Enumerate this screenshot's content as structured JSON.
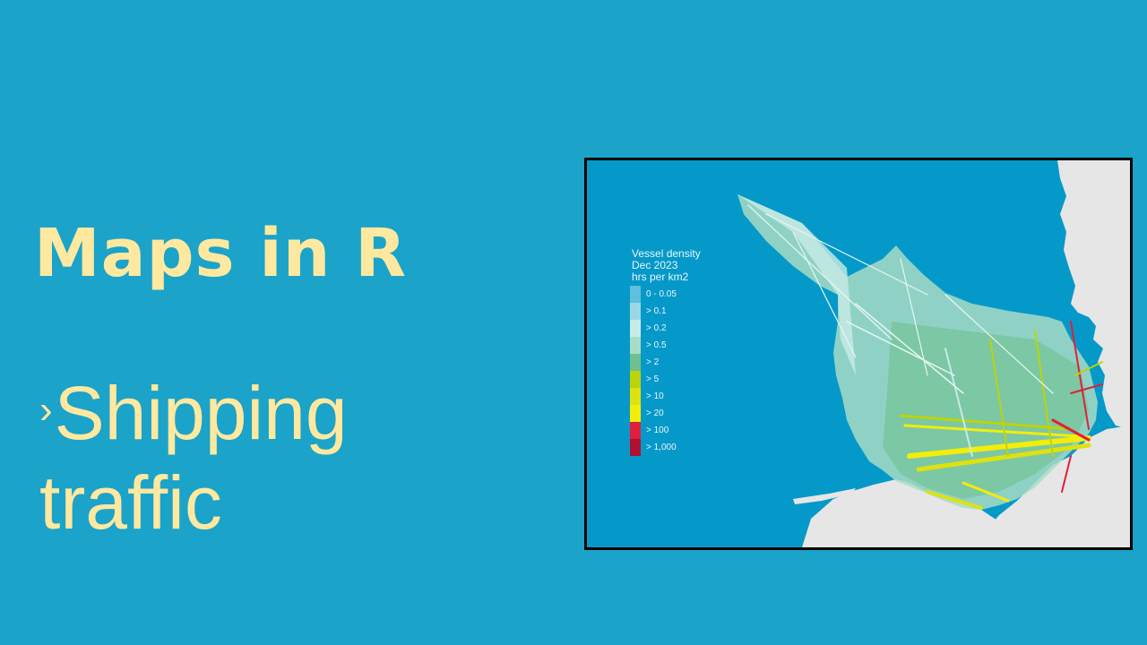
{
  "slide": {
    "title": "Maps in R",
    "bullet_marker": "›",
    "bullet_lines": [
      "Shipping",
      "traffic"
    ]
  },
  "map": {
    "legend": {
      "title_lines": [
        "Vessel density",
        "Dec 2023",
        "hrs per km2"
      ],
      "items": [
        {
          "label": "0 - 0.05",
          "color": "#5fbfdc"
        },
        {
          "label": "> 0.1",
          "color": "#9ed7e4"
        },
        {
          "label": "> 0.2",
          "color": "#c8ebe6"
        },
        {
          "label": "> 0.5",
          "color": "#a8dcc4"
        },
        {
          "label": "> 2",
          "color": "#6fc08e"
        },
        {
          "label": "> 5",
          "color": "#bcd40a"
        },
        {
          "label": "> 10",
          "color": "#dde210"
        },
        {
          "label": "> 20",
          "color": "#f2ee0a"
        },
        {
          "label": "> 100",
          "color": "#e0203a"
        },
        {
          "label": "> 1,000",
          "color": "#b01030"
        }
      ]
    },
    "colors": {
      "sea": "#0599c9",
      "land": "#e6e6e6",
      "border": "#000000"
    }
  }
}
